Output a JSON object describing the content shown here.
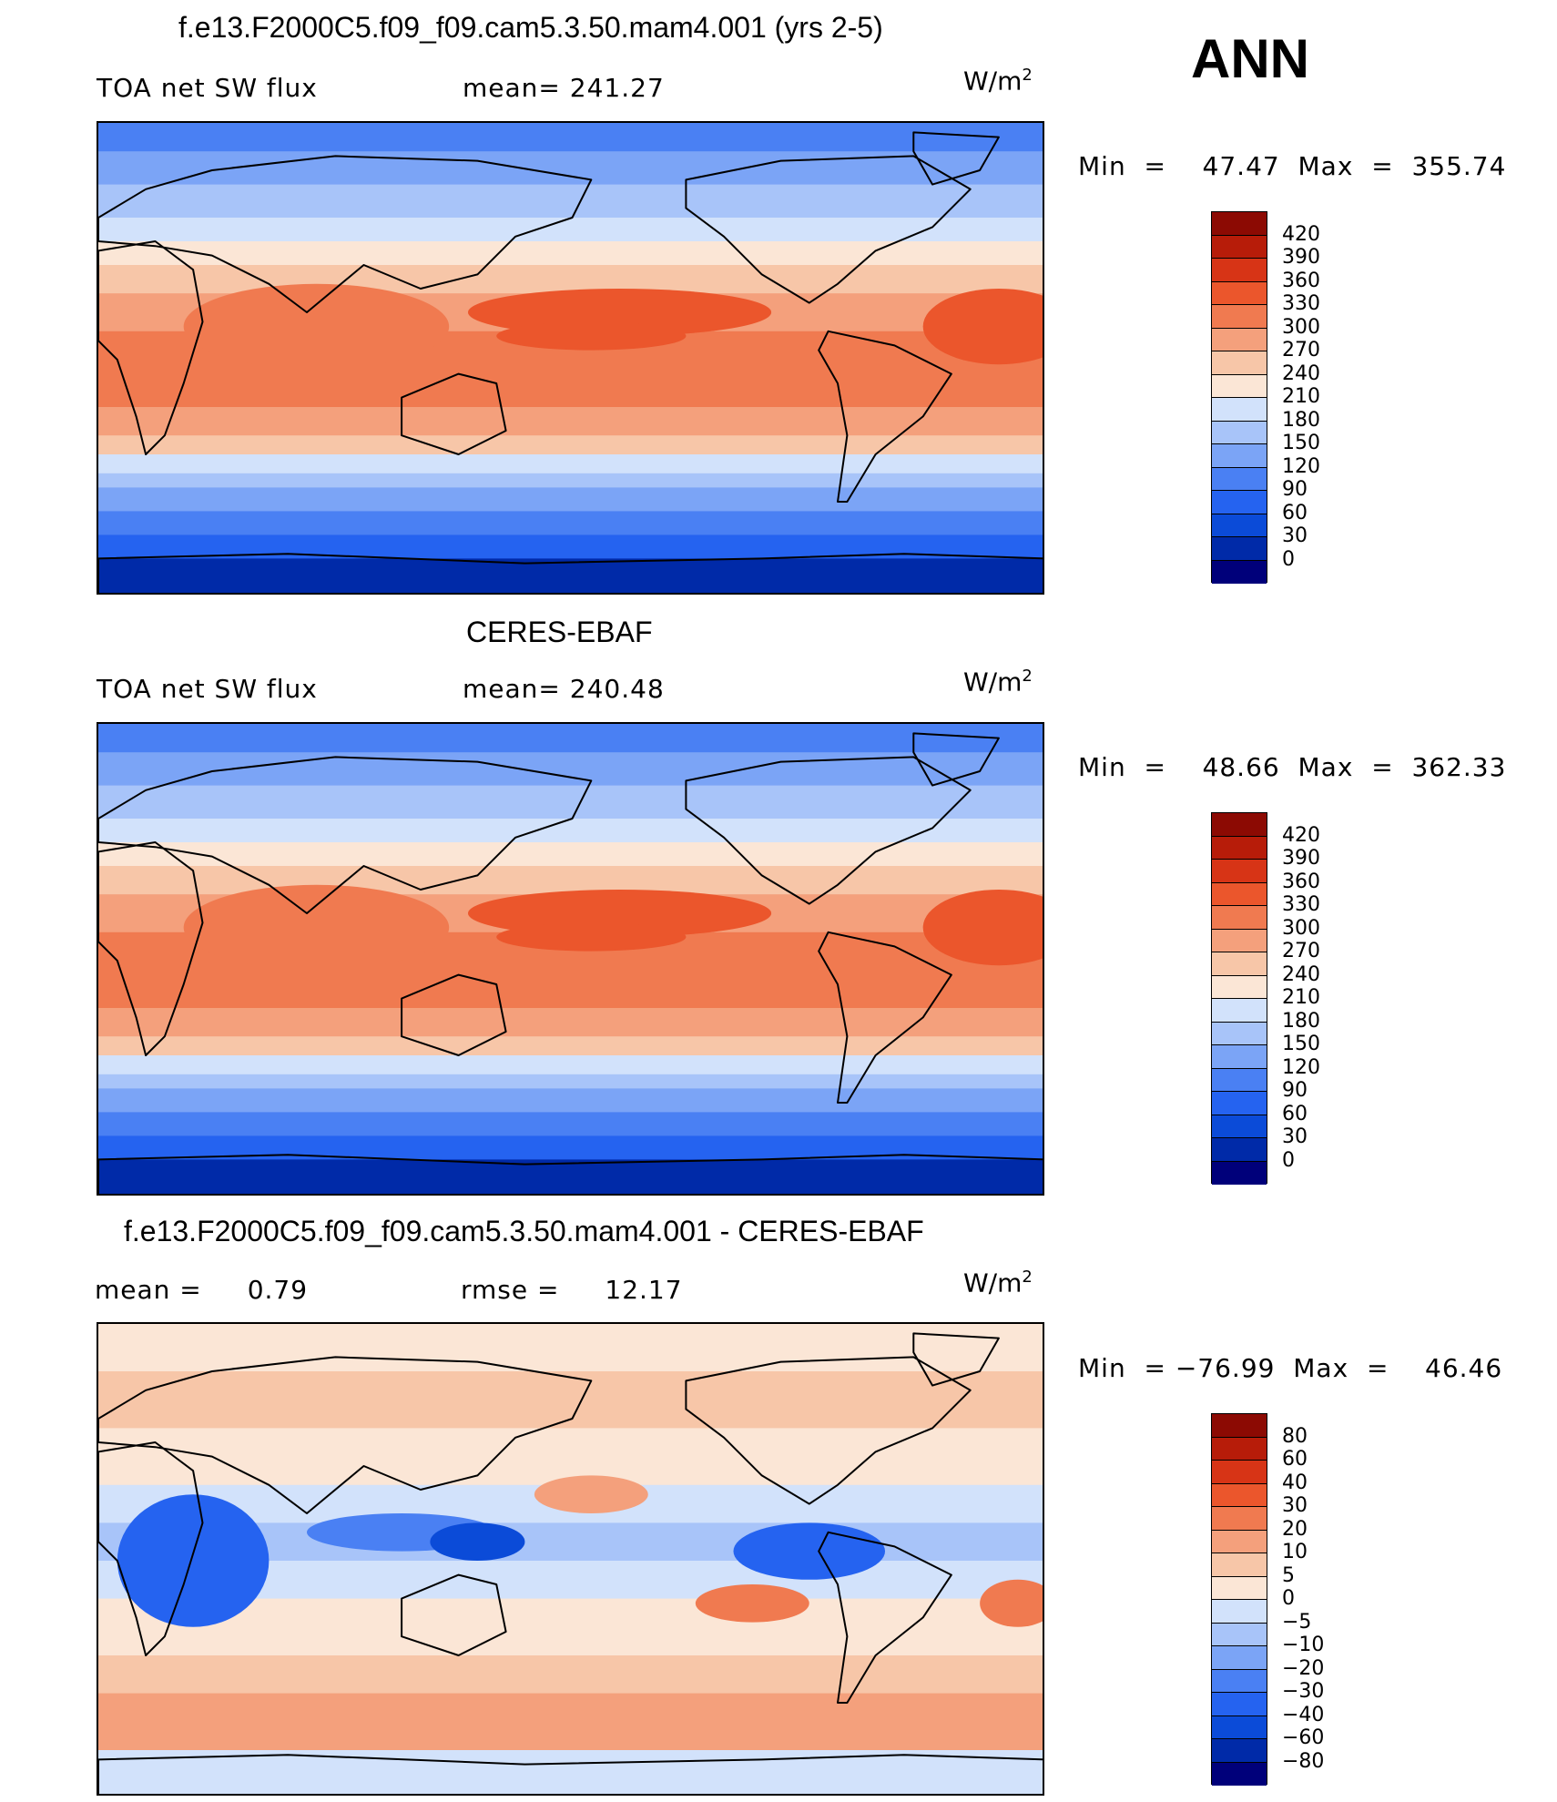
{
  "season": "ANN",
  "colors": {
    "abs_scale": [
      "#00007a",
      "#002aa8",
      "#0b4bd8",
      "#2563f0",
      "#4a80f3",
      "#7ba4f6",
      "#a8c4f9",
      "#d2e2fb",
      "#fbe6d6",
      "#f7c6a8",
      "#f4a07c",
      "#f07a50",
      "#eb562c",
      "#d73416",
      "#b71c09",
      "#8c0a03"
    ],
    "diff_scale": [
      "#00007a",
      "#002aa8",
      "#0b4bd8",
      "#2563f0",
      "#4a80f3",
      "#7ba4f6",
      "#a8c4f9",
      "#d2e2fb",
      "#fbe6d6",
      "#f7c6a8",
      "#f4a07c",
      "#f07a50",
      "#eb562c",
      "#d73416",
      "#b71c09",
      "#8c0a03"
    ]
  },
  "chart_data": [
    {
      "type": "heatmap",
      "title": "f.e13.F2000C5.f09_f09.cam5.3.50.mam4.001 (yrs 2-5)",
      "left_label": "TOA net SW flux",
      "mean_label": "mean=",
      "mean_value": "241.27",
      "units": "W/m",
      "units_exp": "2",
      "min_text": "Min  =    47.47  Max  =  355.74",
      "min": 47.47,
      "max": 355.74,
      "colorbar_levels": [
        "420",
        "390",
        "360",
        "330",
        "300",
        "270",
        "240",
        "210",
        "180",
        "150",
        "120",
        "90",
        "60",
        "30",
        "0"
      ],
      "field": "zonal_shortwave"
    },
    {
      "type": "heatmap",
      "title": "CERES-EBAF",
      "left_label": "TOA net SW flux",
      "mean_label": "mean=",
      "mean_value": "240.48",
      "units": "W/m",
      "units_exp": "2",
      "min_text": "Min  =    48.66  Max  =  362.33",
      "min": 48.66,
      "max": 362.33,
      "colorbar_levels": [
        "420",
        "390",
        "360",
        "330",
        "300",
        "270",
        "240",
        "210",
        "180",
        "150",
        "120",
        "90",
        "60",
        "30",
        "0"
      ],
      "field": "zonal_shortwave"
    },
    {
      "type": "heatmap",
      "title": "f.e13.F2000C5.f09_f09.cam5.3.50.mam4.001 - CERES-EBAF",
      "left_label": "mean  =",
      "left_value": "0.79",
      "mean_label": "rmse  =",
      "mean_value": "12.17",
      "units": "W/m",
      "units_exp": "2",
      "min_text": "Min  = −76.99  Max  =    46.46",
      "min": -76.99,
      "max": 46.46,
      "colorbar_levels": [
        "80",
        "60",
        "40",
        "30",
        "20",
        "10",
        "5",
        "0",
        "−5",
        "−10",
        "−20",
        "−30",
        "−40",
        "−60",
        "−80"
      ],
      "field": "difference"
    }
  ]
}
